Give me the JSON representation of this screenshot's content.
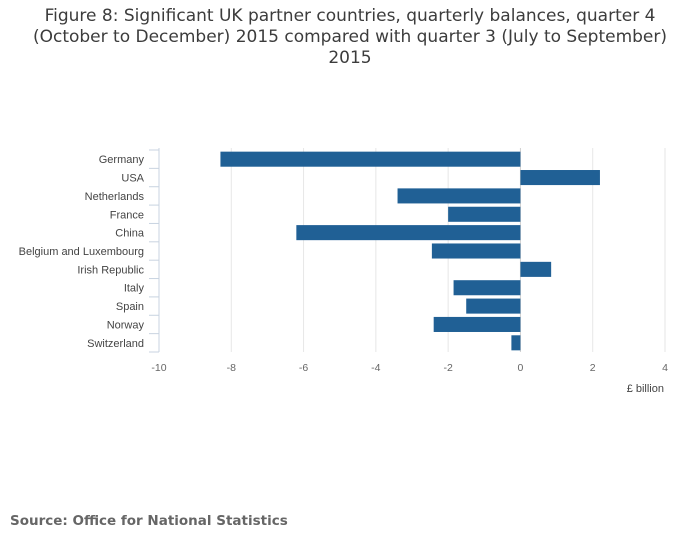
{
  "title": "Figure 8: Significant UK partner countries, quarterly balances, quarter 4 (October to December) 2015 compared with quarter 3 (July to September) 2015",
  "source": "Source: Office for National Statistics",
  "chart_data": {
    "type": "bar",
    "orientation": "horizontal",
    "title": "Figure 8: Significant UK partner countries, quarterly balances, quarter 4 (October to December) 2015 compared with quarter 3 (July to September) 2015",
    "xlabel": "£ billion",
    "ylabel": "",
    "categories": [
      "Germany",
      "USA",
      "Netherlands",
      "France",
      "China",
      "Belgium and Luxembourg",
      "Irish Republic",
      "Italy",
      "Spain",
      "Norway",
      "Switzerland"
    ],
    "values": [
      -8.3,
      2.2,
      -3.4,
      -2.0,
      -6.2,
      -2.45,
      0.85,
      -1.85,
      -1.5,
      -2.4,
      -0.25
    ],
    "xlim": [
      -10,
      4
    ],
    "xticks": [
      "-10",
      "-8",
      "-6",
      "-4",
      "-2",
      "0",
      "2",
      "4"
    ],
    "grid": true,
    "legend": "none",
    "bar_color": "#206095",
    "grid_color": "#e6e6e6"
  }
}
